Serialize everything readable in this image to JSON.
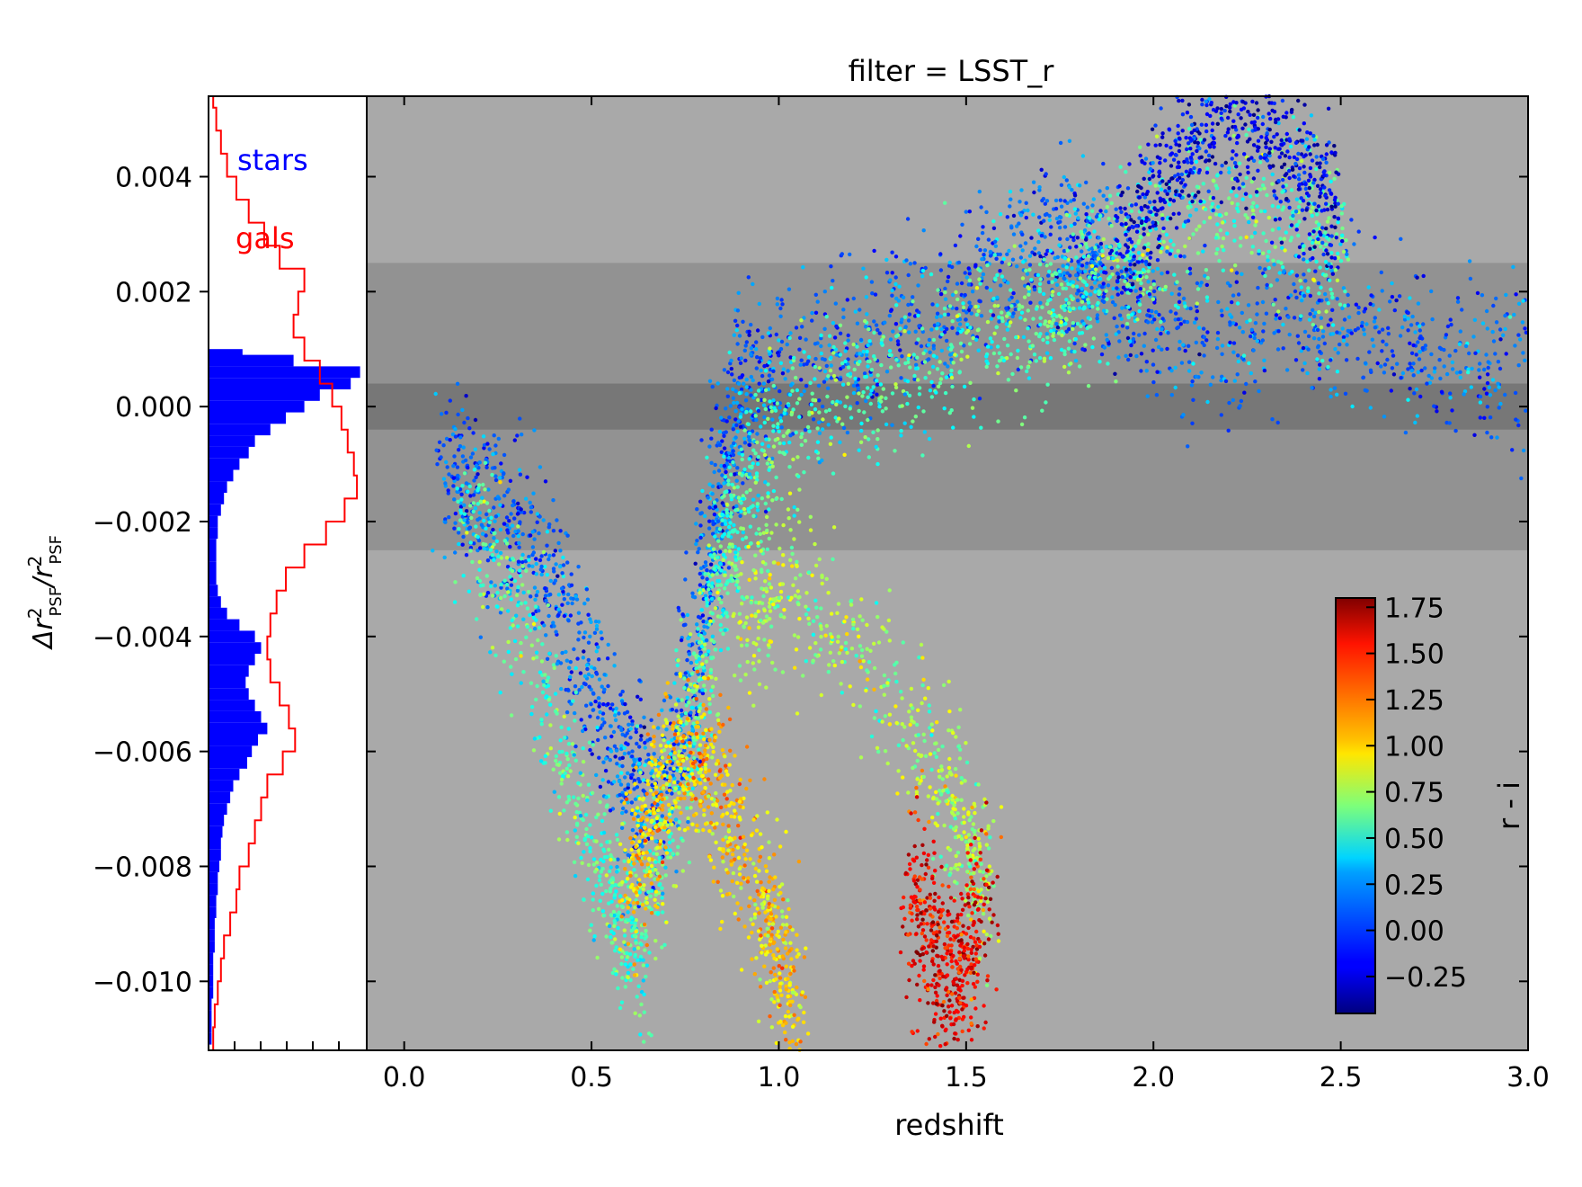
{
  "chart_data": [
    {
      "type": "scatter",
      "title": "filter = LSST_r",
      "xlabel": "redshift",
      "ylabel": "Δr²_PSF / r²_PSF",
      "xlim": [
        -0.1,
        3.0
      ],
      "ylim": [
        -0.0112,
        0.0054
      ],
      "x_ticks": [
        "0.0",
        "0.5",
        "1.0",
        "1.5",
        "2.0",
        "2.5",
        "3.0"
      ],
      "y_ticks": [
        "0.004",
        "0.002",
        "0.000",
        "−0.002",
        "−0.004",
        "−0.006",
        "−0.008",
        "−0.010"
      ],
      "x_tick_values": [
        0.0,
        0.5,
        1.0,
        1.5,
        2.0,
        2.5,
        3.0
      ],
      "y_tick_values": [
        0.004,
        0.002,
        0.0,
        -0.002,
        -0.004,
        -0.006,
        -0.008,
        -0.01
      ],
      "background": "#a9a9a9",
      "tolerance_bands": [
        {
          "y_range": [
            -0.0025,
            0.0025
          ],
          "color": "#929292"
        },
        {
          "y_range": [
            -0.0004,
            0.0004
          ],
          "color": "#777777"
        }
      ],
      "color_variable": "r - i",
      "colormap": "jet",
      "colorbar": {
        "label": "r - i",
        "range": [
          -0.45,
          1.8
        ],
        "tick_values": [
          1.75,
          1.5,
          1.25,
          1.0,
          0.75,
          0.5,
          0.25,
          0.0,
          -0.25
        ],
        "tick_labels": [
          "1.75",
          "1.50",
          "1.25",
          "1.00",
          "0.75",
          "0.50",
          "0.25",
          "0.00",
          "−0.25"
        ],
        "placement": "lower-right inside axes"
      },
      "series": [
        {
          "kind": "galaxy tracks",
          "ridges": [
            {
              "points": [
                [
                  0.1,
                  -0.0008
                ],
                [
                  0.2,
                  -0.0018
                ],
                [
                  0.3,
                  -0.0022
                ],
                [
                  0.4,
                  -0.0032
                ],
                [
                  0.5,
                  -0.0048
                ],
                [
                  0.6,
                  -0.0062
                ],
                [
                  0.65,
                  -0.007
                ],
                [
                  0.75,
                  -0.0055
                ],
                [
                  0.8,
                  -0.003
                ],
                [
                  0.85,
                  -0.0012
                ],
                [
                  0.9,
                  0.0002
                ],
                [
                  1.0,
                  0.0006
                ],
                [
                  1.2,
                  0.001
                ],
                [
                  1.4,
                  0.0016
                ],
                [
                  1.55,
                  0.0022
                ],
                [
                  1.7,
                  0.0028
                ],
                [
                  1.8,
                  0.0026
                ],
                [
                  1.87,
                  0.0024
                ],
                [
                  2.0,
                  0.0014
                ],
                [
                  2.2,
                  0.0012
                ],
                [
                  2.4,
                  0.0016
                ],
                [
                  2.6,
                  0.0012
                ],
                [
                  2.8,
                  0.0008
                ],
                [
                  3.0,
                  0.0007
                ]
              ],
              "color_value": 0.05
            },
            {
              "points": [
                [
                  0.15,
                  -0.0015
                ],
                [
                  0.3,
                  -0.0035
                ],
                [
                  0.45,
                  -0.0065
                ],
                [
                  0.55,
                  -0.0085
                ],
                [
                  0.62,
                  -0.0095
                ],
                [
                  0.7,
                  -0.0075
                ],
                [
                  0.78,
                  -0.005
                ],
                [
                  0.85,
                  -0.003
                ],
                [
                  0.9,
                  -0.0015
                ],
                [
                  1.0,
                  -0.0005
                ],
                [
                  1.2,
                  0.0003
                ],
                [
                  1.4,
                  0.0008
                ],
                [
                  1.6,
                  0.0014
                ],
                [
                  1.75,
                  0.0016
                ],
                [
                  1.87,
                  0.0023
                ],
                [
                  2.0,
                  0.003
                ],
                [
                  2.2,
                  0.0035
                ],
                [
                  2.4,
                  0.0032
                ],
                [
                  2.5,
                  0.0025
                ]
              ],
              "color_value": 0.55
            },
            {
              "points": [
                [
                  0.6,
                  -0.0085
                ],
                [
                  0.65,
                  -0.0075
                ],
                [
                  0.72,
                  -0.006
                ],
                [
                  0.8,
                  -0.0062
                ],
                [
                  0.85,
                  -0.007
                ],
                [
                  0.95,
                  -0.0085
                ],
                [
                  1.0,
                  -0.0095
                ],
                [
                  1.05,
                  -0.011
                ]
              ],
              "color_value": 1.05
            },
            {
              "points": [
                [
                  0.9,
                  -0.004
                ],
                [
                  1.0,
                  -0.003
                ],
                [
                  1.2,
                  -0.004
                ],
                [
                  1.4,
                  -0.006
                ],
                [
                  1.5,
                  -0.0075
                ],
                [
                  1.55,
                  -0.0085
                ]
              ],
              "color_value": 0.75
            },
            {
              "points": [
                [
                  1.35,
                  -0.0085
                ],
                [
                  1.4,
                  -0.0092
                ],
                [
                  1.45,
                  -0.01
                ],
                [
                  1.5,
                  -0.0098
                ],
                [
                  1.55,
                  -0.0082
                ]
              ],
              "color_value": 1.55
            },
            {
              "points": [
                [
                  1.9,
                  0.0026
                ],
                [
                  2.0,
                  0.0035
                ],
                [
                  2.1,
                  0.0045
                ],
                [
                  2.2,
                  0.0052
                ],
                [
                  2.3,
                  0.0048
                ],
                [
                  2.4,
                  0.004
                ],
                [
                  2.5,
                  0.0032
                ]
              ],
              "color_value": -0.2
            }
          ]
        }
      ]
    },
    {
      "type": "histogram",
      "orientation": "horizontal",
      "shares_y_axis_with": "main scatter",
      "series": [
        {
          "name": "stars",
          "color": "#0000ff",
          "style": "filled",
          "y_bins": [
            0.0009,
            0.0008,
            0.0006,
            0.0004,
            0.0002,
            0.0,
            -0.0002,
            -0.0004,
            -0.0006,
            -0.0008,
            -0.001,
            -0.0012,
            -0.0014,
            -0.0016,
            -0.0018,
            -0.002,
            -0.0022,
            -0.0024,
            -0.0026,
            -0.0028,
            -0.003,
            -0.0032,
            -0.0034,
            -0.0036,
            -0.0038,
            -0.004,
            -0.0042,
            -0.0044,
            -0.0046,
            -0.0048,
            -0.005,
            -0.0052,
            -0.0054,
            -0.0056,
            -0.0058,
            -0.006,
            -0.0062,
            -0.0064,
            -0.0066,
            -0.0068,
            -0.007,
            -0.0072,
            -0.0074,
            -0.0076,
            -0.0078,
            -0.008,
            -0.0082,
            -0.0084,
            -0.0086,
            -0.0088,
            -0.009,
            -0.0092,
            -0.0094,
            -0.0096,
            -0.0098,
            -0.01,
            -0.0102,
            -0.0104,
            -0.0106,
            -0.0108,
            -0.011
          ],
          "counts": [
            0.22,
            0.55,
            0.98,
            0.92,
            0.72,
            0.62,
            0.5,
            0.4,
            0.3,
            0.26,
            0.2,
            0.16,
            0.12,
            0.1,
            0.08,
            0.06,
            0.06,
            0.05,
            0.05,
            0.05,
            0.05,
            0.06,
            0.08,
            0.12,
            0.2,
            0.3,
            0.34,
            0.3,
            0.26,
            0.24,
            0.26,
            0.3,
            0.34,
            0.38,
            0.32,
            0.28,
            0.25,
            0.2,
            0.16,
            0.14,
            0.12,
            0.1,
            0.09,
            0.08,
            0.08,
            0.07,
            0.06,
            0.06,
            0.05,
            0.05,
            0.04,
            0.04,
            0.04,
            0.03,
            0.03,
            0.03,
            0.03,
            0.02,
            0.02,
            0.02,
            0.02
          ]
        },
        {
          "name": "gals",
          "color": "#ff0000",
          "style": "step",
          "y_bins": [
            0.0054,
            0.005,
            0.0046,
            0.0042,
            0.0038,
            0.0034,
            0.003,
            0.0026,
            0.0022,
            0.0018,
            0.0014,
            0.001,
            0.0006,
            0.0002,
            -0.0002,
            -0.0006,
            -0.001,
            -0.0014,
            -0.0018,
            -0.0022,
            -0.0026,
            -0.003,
            -0.0034,
            -0.0038,
            -0.0042,
            -0.0046,
            -0.005,
            -0.0054,
            -0.0058,
            -0.0062,
            -0.0066,
            -0.007,
            -0.0074,
            -0.0078,
            -0.0082,
            -0.0086,
            -0.009,
            -0.0094,
            -0.0098,
            -0.0102,
            -0.0106,
            -0.011
          ],
          "counts": [
            0.03,
            0.05,
            0.08,
            0.12,
            0.18,
            0.26,
            0.36,
            0.46,
            0.62,
            0.58,
            0.55,
            0.62,
            0.72,
            0.8,
            0.86,
            0.9,
            0.94,
            0.96,
            0.88,
            0.76,
            0.62,
            0.5,
            0.44,
            0.4,
            0.38,
            0.4,
            0.46,
            0.52,
            0.56,
            0.48,
            0.38,
            0.34,
            0.3,
            0.26,
            0.2,
            0.18,
            0.14,
            0.1,
            0.08,
            0.06,
            0.04,
            0.03
          ]
        }
      ],
      "legend": [
        "stars",
        "gals"
      ]
    }
  ]
}
